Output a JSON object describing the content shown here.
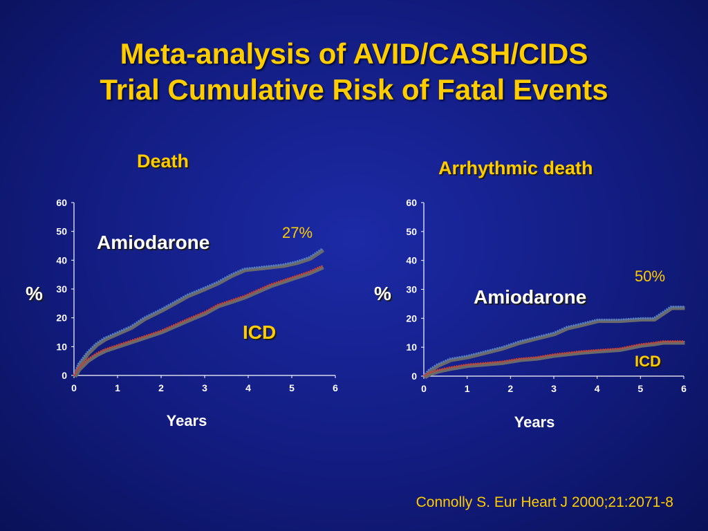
{
  "title": {
    "line1": "Meta-analysis of AVID/CASH/CIDS",
    "line2": "Trial Cumulative Risk of Fatal Events"
  },
  "citation": "Connolly S. Eur Heart J 2000;21:2071-8",
  "colors": {
    "background": "#121c80",
    "title": "#ffcc00",
    "amiodarone_line": "#4f7fd8",
    "icd_line": "#d93a2b"
  },
  "chart_data": [
    {
      "type": "line",
      "title": "Death",
      "xlabel": "Years",
      "ylabel": "%",
      "xlim": [
        0,
        6
      ],
      "ylim": [
        0,
        60
      ],
      "x_ticks": [
        "0",
        "1",
        "2",
        "3",
        "4",
        "5",
        "6"
      ],
      "y_ticks": [
        "0",
        "10",
        "20",
        "30",
        "40",
        "50",
        "60"
      ],
      "grid": false,
      "series": [
        {
          "name": "Amiodarone",
          "color": "#4f7fd8",
          "x": [
            0,
            0.1,
            0.3,
            0.5,
            0.7,
            1.0,
            1.3,
            1.6,
            2.0,
            2.3,
            2.6,
            3.0,
            3.3,
            3.6,
            3.9,
            4.2,
            4.5,
            4.8,
            5.1,
            5.4,
            5.7
          ],
          "y": [
            0,
            4,
            8,
            11,
            13,
            15,
            17,
            20,
            23,
            25.5,
            28,
            30.5,
            32.5,
            35,
            37,
            37.5,
            38,
            38.5,
            39.5,
            41,
            44
          ]
        },
        {
          "name": "ICD",
          "color": "#d93a2b",
          "x": [
            0,
            0.1,
            0.3,
            0.5,
            0.7,
            1.0,
            1.3,
            1.6,
            2.0,
            2.3,
            2.6,
            3.0,
            3.3,
            3.6,
            3.9,
            4.2,
            4.5,
            4.8,
            5.1,
            5.4,
            5.7
          ],
          "y": [
            0,
            2.5,
            5.5,
            7.5,
            9,
            10.5,
            12,
            13.5,
            15.5,
            17.5,
            19.5,
            22,
            24.5,
            26,
            27.5,
            29.5,
            31.5,
            33,
            34.5,
            36,
            38
          ]
        }
      ],
      "annotations": [
        "27%"
      ]
    },
    {
      "type": "line",
      "title": "Arrhythmic death",
      "xlabel": "Years",
      "ylabel": "%",
      "xlim": [
        0,
        6
      ],
      "ylim": [
        0,
        60
      ],
      "x_ticks": [
        "0",
        "1",
        "2",
        "3",
        "4",
        "5",
        "6"
      ],
      "y_ticks": [
        "0",
        "10",
        "20",
        "30",
        "40",
        "50",
        "60"
      ],
      "grid": false,
      "series": [
        {
          "name": "Amiodarone",
          "color": "#4f7fd8",
          "x": [
            0,
            0.1,
            0.3,
            0.6,
            1.0,
            1.4,
            1.8,
            2.2,
            2.6,
            3.0,
            3.3,
            3.6,
            4.0,
            4.5,
            5.0,
            5.3,
            5.5,
            5.7,
            6.0
          ],
          "y": [
            0,
            2,
            4,
            6,
            7,
            8.5,
            10,
            12,
            13.5,
            15,
            17,
            18,
            19.5,
            19.5,
            20,
            20,
            22,
            24,
            24
          ]
        },
        {
          "name": "ICD",
          "color": "#d93a2b",
          "x": [
            0,
            0.1,
            0.3,
            0.6,
            1.0,
            1.4,
            1.8,
            2.2,
            2.6,
            3.0,
            3.3,
            3.6,
            4.0,
            4.5,
            5.0,
            5.3,
            5.5,
            5.7,
            6.0
          ],
          "y": [
            0,
            1,
            2,
            3,
            4,
            4.5,
            5,
            6,
            6.5,
            7.5,
            8,
            8.5,
            9,
            9.5,
            11,
            11.5,
            12,
            12,
            12
          ]
        }
      ],
      "annotations": [
        "50%"
      ]
    }
  ]
}
